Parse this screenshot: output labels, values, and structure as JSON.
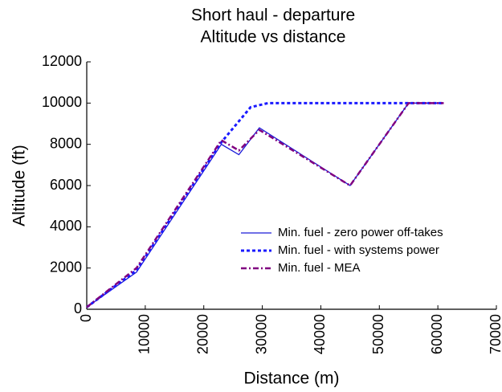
{
  "chart_data": {
    "type": "line",
    "title": [
      "Short haul - departure",
      "Altitude vs distance"
    ],
    "xlabel": "Distance (m)",
    "ylabel": "Altitude (ft)",
    "xlim": [
      0,
      70000
    ],
    "xticks": [
      0,
      10000,
      20000,
      30000,
      40000,
      50000,
      60000,
      70000
    ],
    "ylim": [
      0,
      12000
    ],
    "yticks": [
      0,
      2000,
      4000,
      6000,
      8000,
      10000,
      12000
    ],
    "legend": "lower right",
    "series": [
      {
        "name": "Min. fuel - zero power off-takes",
        "color": "#1a1ad8",
        "style": "solid",
        "x": [
          0,
          8500,
          23000,
          26000,
          29500,
          45000,
          55000,
          61000
        ],
        "values": [
          100,
          1800,
          8000,
          7500,
          8800,
          6000,
          10000,
          10000
        ]
      },
      {
        "name": "Min. fuel - with systems power",
        "color": "#1a1aff",
        "style": "dashed",
        "x": [
          0,
          8500,
          23000,
          28000,
          31000,
          61000
        ],
        "values": [
          100,
          1900,
          8100,
          9800,
          10000,
          10000
        ]
      },
      {
        "name": "Min. fuel - MEA",
        "color": "#800080",
        "style": "dashdot",
        "x": [
          0,
          8500,
          23000,
          26000,
          29500,
          45000,
          55000,
          61000
        ],
        "values": [
          100,
          2000,
          8200,
          7700,
          8700,
          6000,
          10000,
          10000
        ]
      }
    ]
  }
}
